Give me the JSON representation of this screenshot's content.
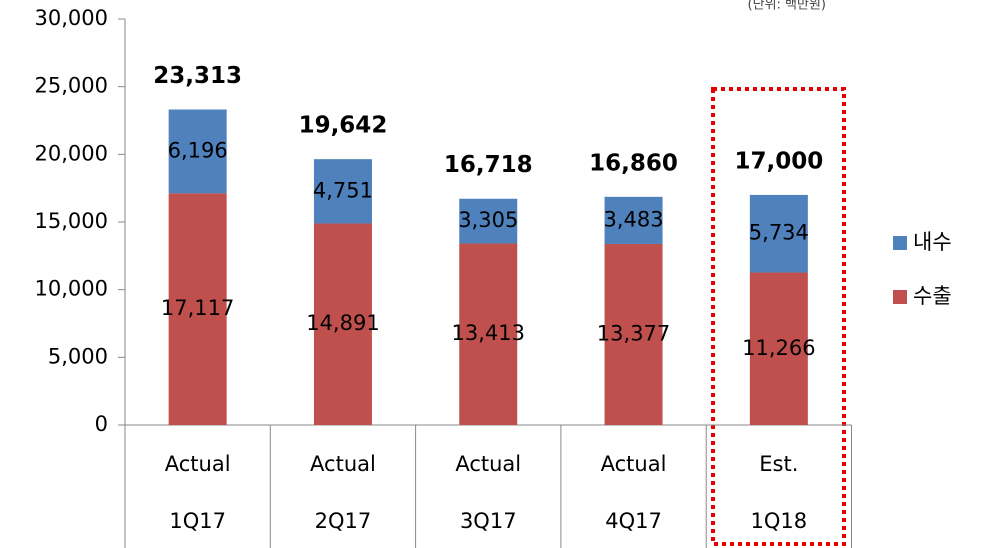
{
  "chart_data": {
    "type": "stacked_bar",
    "unit_note": "(단위: 백만원)",
    "categories": [
      "1Q17",
      "2Q17",
      "3Q17",
      "4Q17",
      "1Q18"
    ],
    "category_groups": [
      "Actual",
      "Actual",
      "Actual",
      "Actual",
      "Est."
    ],
    "series": [
      {
        "name": "수출",
        "color": "#c0504d",
        "values": [
          17117,
          14891,
          13413,
          13377,
          11266
        ],
        "value_labels": [
          "17,117",
          "14,891",
          "13,413",
          "13,377",
          "11,266"
        ]
      },
      {
        "name": "내수",
        "color": "#4f81bd",
        "values": [
          6196,
          4751,
          3305,
          3483,
          5734
        ],
        "value_labels": [
          "6,196",
          "4,751",
          "3,305",
          "3,483",
          "5,734"
        ]
      }
    ],
    "totals": [
      23313,
      19642,
      16718,
      16860,
      17000
    ],
    "total_labels": [
      "23,313",
      "19,642",
      "16,718",
      "16,860",
      "17,000"
    ],
    "ylim": [
      0,
      30000
    ],
    "yticks": [
      0,
      {
        "value": 5000,
        "label": "5,000"
      },
      {
        "value": 10000,
        "label": "10,000"
      },
      {
        "value": 15000,
        "label": "15,000"
      },
      {
        "value": 20000,
        "label": "20,000"
      },
      {
        "value": 25000,
        "label": "25,000"
      },
      {
        "value": 30000,
        "label": "30,000"
      }
    ],
    "legend": "right"
  }
}
